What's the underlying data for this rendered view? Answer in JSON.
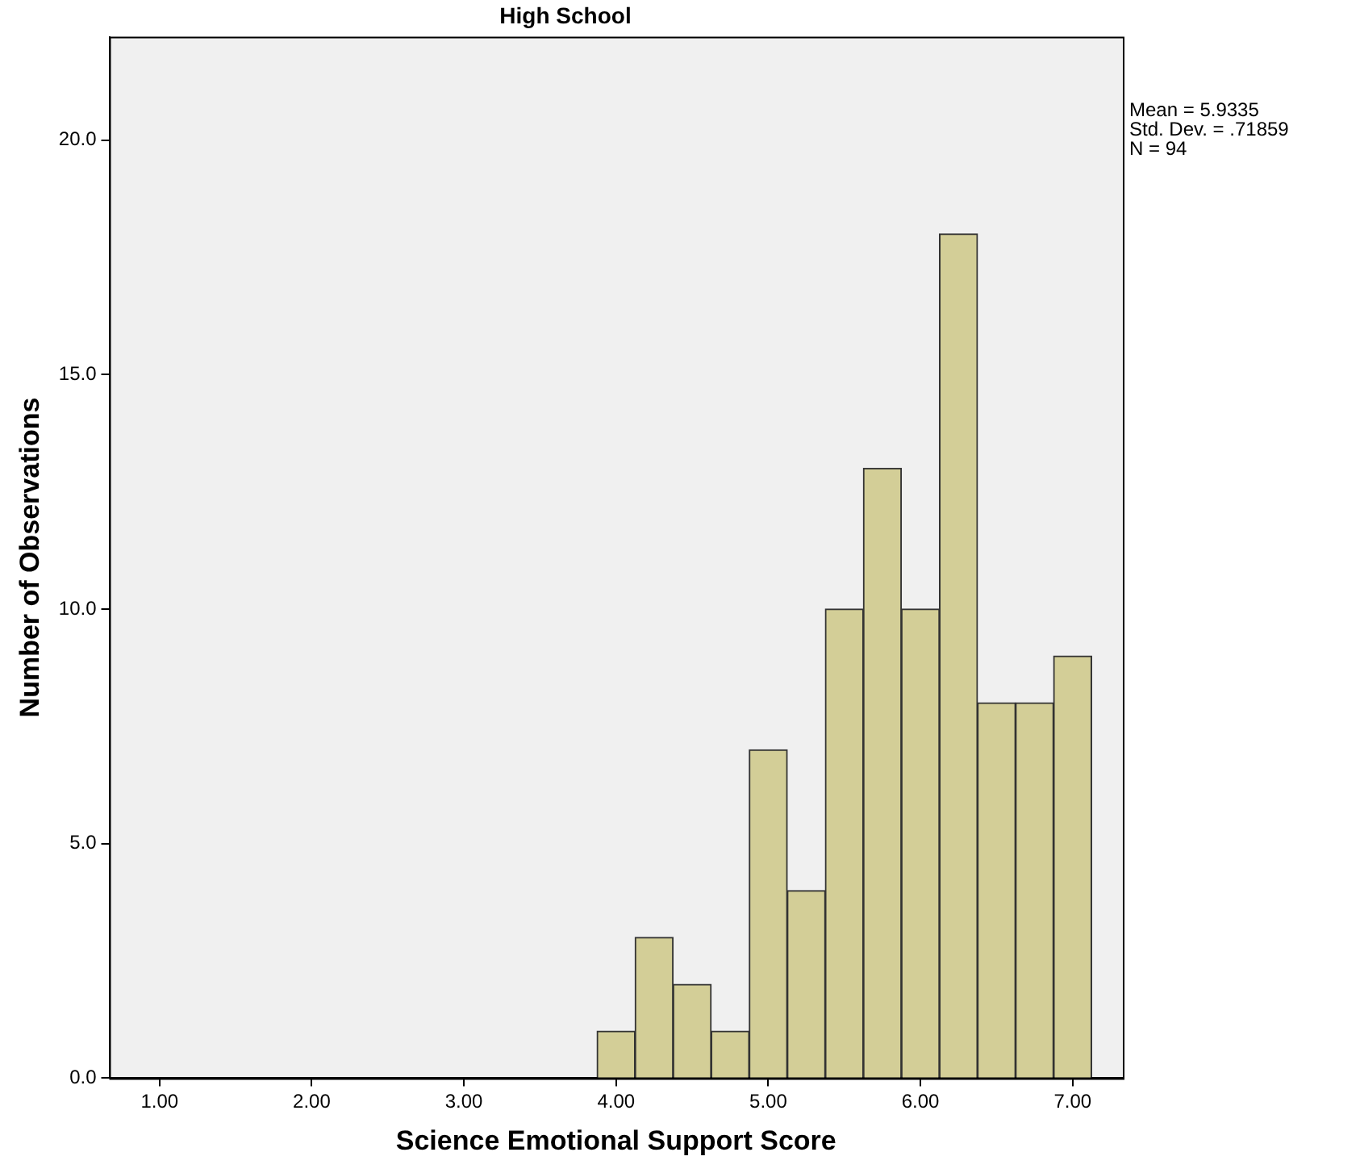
{
  "chart_data": {
    "type": "histogram",
    "title": "High School",
    "xlabel": "Science Emotional Support Score",
    "ylabel": "Number of Observations",
    "bins": [
      3.875,
      4.125,
      4.375,
      4.625,
      4.875,
      5.125,
      5.375,
      5.625,
      5.875,
      6.125,
      6.375,
      6.625,
      6.875,
      7.125
    ],
    "values": [
      1,
      3,
      2,
      1,
      7,
      4,
      10,
      13,
      10,
      18,
      8,
      8,
      9
    ],
    "color": "#d3ce97",
    "xlim": [
      0.67,
      7.33
    ],
    "xticks": [
      {
        "value": 1,
        "label": "1.00"
      },
      {
        "value": 2,
        "label": "2.00"
      },
      {
        "value": 3,
        "label": "3.00"
      },
      {
        "value": 4,
        "label": "4.00"
      },
      {
        "value": 5,
        "label": "5.00"
      },
      {
        "value": 6,
        "label": "6.00"
      },
      {
        "value": 7,
        "label": "7.00"
      }
    ],
    "ylim": [
      0,
      22.2
    ],
    "yticks": [
      {
        "value": 0,
        "label": "0.0"
      },
      {
        "value": 5,
        "label": "5.0"
      },
      {
        "value": 10,
        "label": "10.0"
      },
      {
        "value": 15,
        "label": "15.0"
      },
      {
        "value": 20,
        "label": "20.0"
      }
    ],
    "grid": false,
    "legend": false,
    "annotations": [
      "Mean = 5.9335",
      "Std. Dev. = .71859",
      "N = 94"
    ]
  }
}
